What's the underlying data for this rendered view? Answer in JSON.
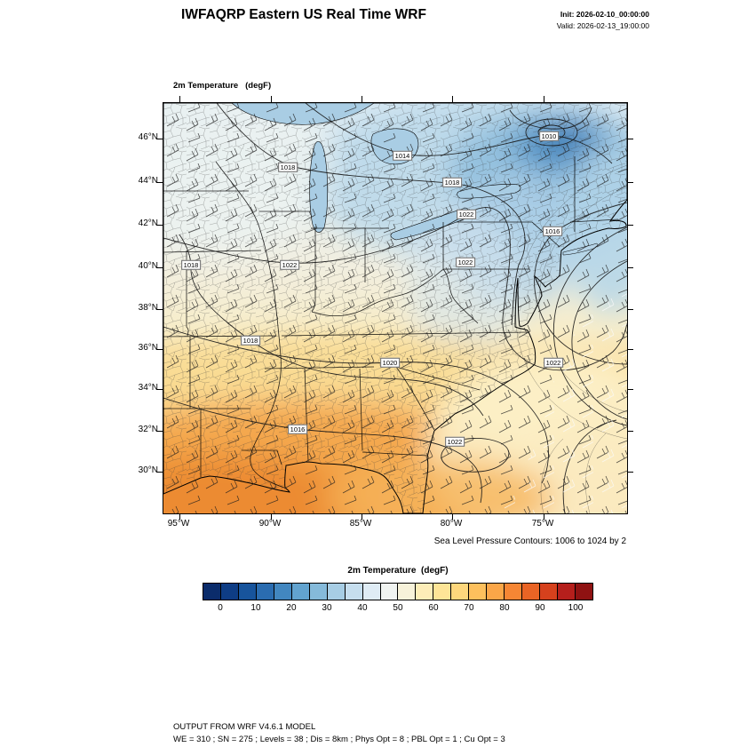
{
  "header": {
    "title": "IWFAQRP Eastern US Real Time WRF",
    "init": "Init: 2026-02-10_00:00:00",
    "valid": "Valid: 2026-02-13_19:00:00"
  },
  "fields": [
    "2m Temperature   (degF)",
    "Sea Level Pressure   (hPa)",
    "10m Winds   (kts)"
  ],
  "map": {
    "lat_labels": [
      "46°N",
      "44°N",
      "42°N",
      "40°N",
      "38°N",
      "36°N",
      "34°N",
      "32°N",
      "30°N"
    ],
    "lon_labels": [
      "95°W",
      "90°W",
      "85°W",
      "80°W",
      "75°W"
    ],
    "contour_labels": [
      "1010",
      "1014",
      "1018",
      "1018",
      "1022",
      "1016",
      "1018",
      "1022",
      "1022",
      "1018",
      "1020",
      "1022",
      "1016",
      "1022"
    ],
    "caption": "Sea Level Pressure Contours: 1006 to 1024 by 2"
  },
  "colorbar": {
    "title": "2m Temperature  (degF)",
    "ticks": [
      "0",
      "10",
      "20",
      "30",
      "40",
      "50",
      "60",
      "70",
      "80",
      "90",
      "100"
    ],
    "colors": [
      "#0b2c6b",
      "#0e3d85",
      "#17549c",
      "#2a6cb0",
      "#4287c0",
      "#62a3cf",
      "#85bada",
      "#a7cde4",
      "#c6deee",
      "#dfecf5",
      "#f1f4f1",
      "#f7f2da",
      "#fdedb8",
      "#fee597",
      "#fed77c",
      "#fdc05d",
      "#fba648",
      "#f68634",
      "#e96425",
      "#d6411d",
      "#b51f1c",
      "#8f1212"
    ]
  },
  "footer": {
    "line1": "OUTPUT FROM WRF V4.6.1 MODEL",
    "line2": "WE = 310 ; SN = 275 ; Levels = 38 ; Dis = 8km ; Phys Opt = 8 ; PBL Opt = 1 ; Cu Opt = 3"
  }
}
